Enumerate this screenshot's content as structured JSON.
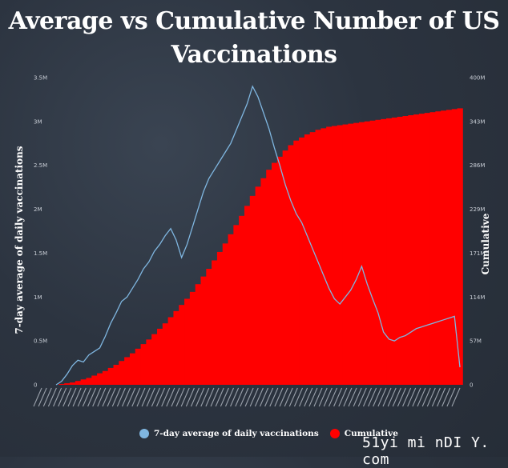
{
  "title": "Average vs Cumulative Number of US Vaccinations",
  "chart_data": {
    "type": "line",
    "xlabel": "",
    "left_axis": {
      "label": "7-day average of daily vaccinations",
      "ticks": [
        "0",
        "0.5M",
        "1M",
        "1.5M",
        "2M",
        "2.5M",
        "3M",
        "3.5M"
      ],
      "ylim": [
        0,
        3.5
      ]
    },
    "right_axis": {
      "label": "Cumulative",
      "ticks": [
        "0",
        "57M",
        "114M",
        "171M",
        "229M",
        "286M",
        "343M",
        "400M"
      ],
      "ylim": [
        0,
        400
      ]
    },
    "series": [
      {
        "name": "7-day average of daily vaccinations",
        "type": "line",
        "axis": "left",
        "color": "#7fb6e0",
        "values": [
          0,
          0.04,
          0.12,
          0.22,
          0.28,
          0.26,
          0.34,
          0.38,
          0.42,
          0.55,
          0.7,
          0.82,
          0.95,
          1.0,
          1.1,
          1.2,
          1.32,
          1.4,
          1.52,
          1.6,
          1.7,
          1.78,
          1.65,
          1.45,
          1.6,
          1.8,
          2.0,
          2.2,
          2.35,
          2.45,
          2.55,
          2.65,
          2.75,
          2.9,
          3.05,
          3.2,
          3.4,
          3.28,
          3.1,
          2.92,
          2.7,
          2.5,
          2.28,
          2.1,
          1.95,
          1.85,
          1.7,
          1.55,
          1.4,
          1.25,
          1.1,
          0.98,
          0.92,
          1.0,
          1.08,
          1.2,
          1.35,
          1.15,
          0.98,
          0.82,
          0.6,
          0.52,
          0.5,
          0.54,
          0.56,
          0.6,
          0.64,
          0.66,
          0.68,
          0.7,
          0.72,
          0.74,
          0.76,
          0.78,
          0.2
        ]
      },
      {
        "name": "Cumulative",
        "type": "bar",
        "axis": "right",
        "color": "#ff0000",
        "values": [
          0,
          1,
          2,
          3,
          5,
          7,
          9,
          12,
          15,
          18,
          22,
          26,
          31,
          36,
          41,
          47,
          53,
          59,
          66,
          73,
          80,
          88,
          96,
          104,
          112,
          121,
          131,
          141,
          151,
          162,
          173,
          184,
          196,
          208,
          220,
          233,
          246,
          258,
          269,
          280,
          289,
          297,
          305,
          312,
          318,
          322,
          326,
          329,
          332,
          334,
          336,
          337,
          338,
          339,
          340,
          341,
          342,
          343,
          344,
          345,
          346,
          347,
          348,
          349,
          350,
          351,
          352,
          353,
          354,
          355,
          356,
          357,
          358,
          359,
          360
        ]
      }
    ],
    "legend_position": "bottom",
    "grid": false
  },
  "watermark": "51yi mi nDI Y. com"
}
